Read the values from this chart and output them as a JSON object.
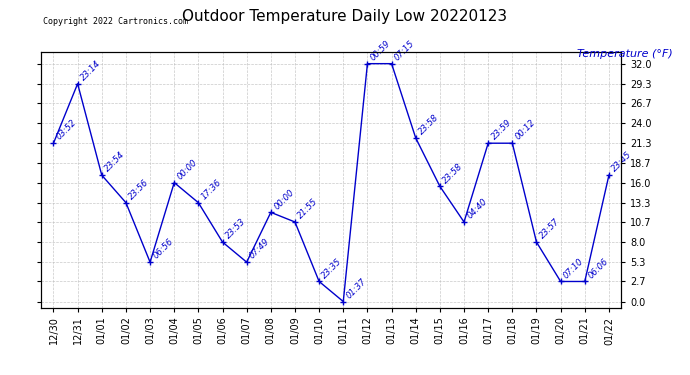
{
  "title": "Outdoor Temperature Daily Low 20220123",
  "ylabel": "Temperature (°F)",
  "copyright": "Copyright 2022 Cartronics.com",
  "line_color": "#0000cc",
  "background_color": "#ffffff",
  "plot_bg_color": "#ffffff",
  "grid_color": "#bbbbbb",
  "x_labels": [
    "12/30",
    "12/31",
    "01/01",
    "01/02",
    "01/03",
    "01/04",
    "01/05",
    "01/06",
    "01/07",
    "01/08",
    "01/09",
    "01/10",
    "01/11",
    "01/12",
    "01/13",
    "01/14",
    "01/15",
    "01/16",
    "01/17",
    "01/18",
    "01/19",
    "01/20",
    "01/21",
    "01/22"
  ],
  "y_values": [
    21.3,
    29.3,
    17.0,
    13.3,
    5.3,
    16.0,
    13.3,
    8.0,
    5.3,
    12.0,
    10.7,
    2.7,
    0.0,
    32.0,
    32.0,
    22.0,
    15.5,
    10.7,
    21.3,
    21.3,
    8.0,
    2.7,
    2.7,
    17.0
  ],
  "time_labels": [
    "03:52",
    "23:14",
    "23:54",
    "23:56",
    "06:56",
    "00:00",
    "17:36",
    "23:53",
    "07:49",
    "00:00",
    "21:55",
    "23:35",
    "01:37",
    "00:59",
    "07:15",
    "23:58",
    "23:58",
    "04:40",
    "23:59",
    "00:12",
    "23:57",
    "07:10",
    "06:06",
    "23:45"
  ],
  "yticks": [
    0.0,
    2.7,
    5.3,
    8.0,
    10.7,
    13.3,
    16.0,
    18.7,
    21.3,
    24.0,
    26.7,
    29.3,
    32.0
  ],
  "ylim": [
    -0.8,
    33.5
  ],
  "title_fontsize": 11,
  "tick_fontsize": 7,
  "time_fontsize": 6,
  "ylabel_fontsize": 8
}
